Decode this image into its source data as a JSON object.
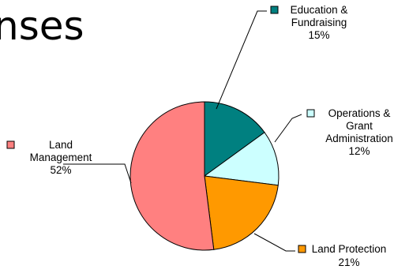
{
  "chart_data": {
    "type": "pie",
    "title": "nses",
    "slices": [
      {
        "name": "Education & Fundraising",
        "label_lines": [
          "Education &",
          "Fundraising"
        ],
        "percent_label": "15%",
        "value": 15,
        "color": "#008080"
      },
      {
        "name": "Operations & Grant Administration",
        "label_lines": [
          "Operations &",
          "Grant",
          "Administration"
        ],
        "percent_label": "12%",
        "value": 12,
        "color": "#ccffff"
      },
      {
        "name": "Land Protection",
        "label_lines": [
          "Land Protection"
        ],
        "percent_label": "21%",
        "value": 21,
        "color": "#ff9900"
      },
      {
        "name": "Land Management",
        "label_lines": [
          "Land",
          "Management"
        ],
        "percent_label": "52%",
        "value": 52,
        "color": "#ff8080"
      }
    ],
    "start_angle_deg": 0,
    "direction": "clockwise",
    "slice_outline_color": "#000000",
    "legend_markers": true
  }
}
